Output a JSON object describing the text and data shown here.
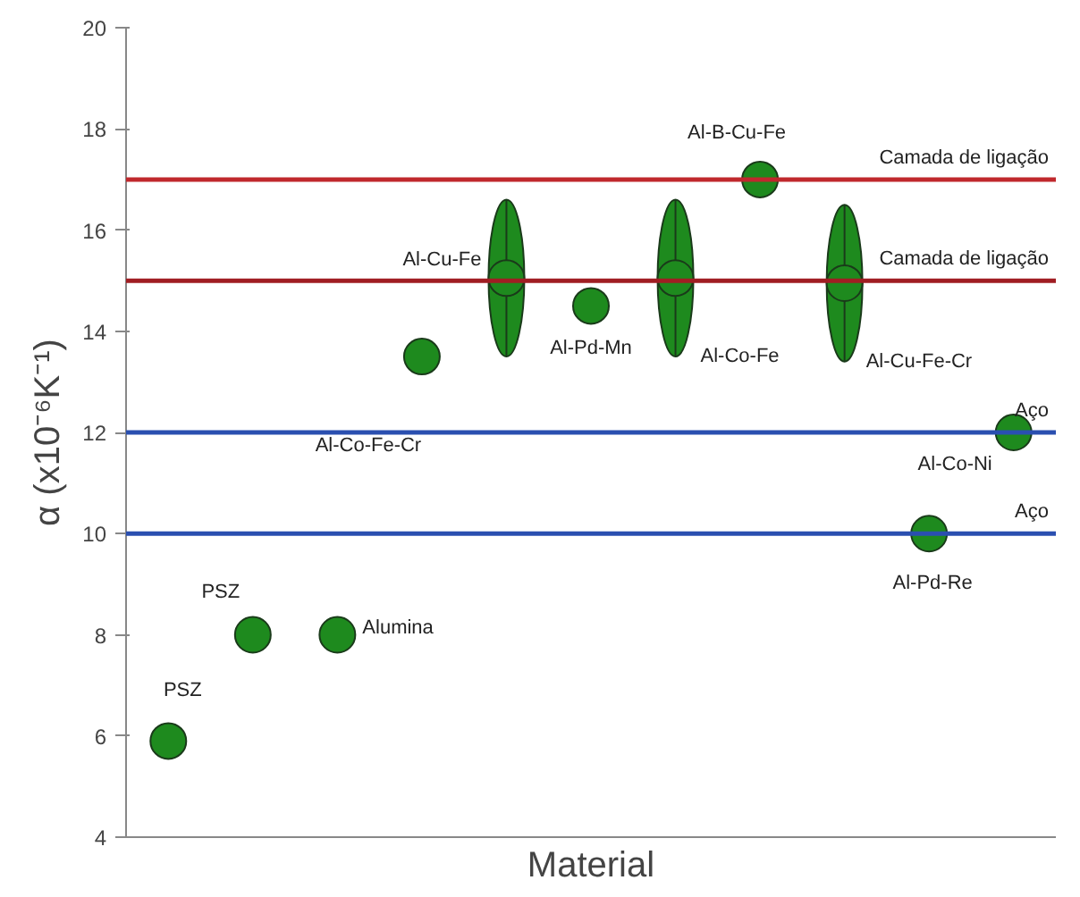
{
  "chart_data": {
    "type": "scatter",
    "xlabel": "Material",
    "ylabel": "α (x10⁻⁶K⁻¹)",
    "categories": [
      null,
      null,
      null,
      null,
      null,
      null,
      null,
      null,
      null,
      null,
      null
    ],
    "series": [
      {
        "color": "#1e8a1e",
        "values": [
          5.9,
          8.0,
          8.0,
          13.5,
          15.05,
          14.5,
          15.05,
          17.0,
          14.95,
          10.0,
          12.0
        ],
        "errors": [
          null,
          null,
          null,
          null,
          [
            13.5,
            16.6
          ],
          null,
          [
            13.5,
            16.6
          ],
          null,
          [
            13.4,
            16.5
          ],
          null,
          null
        ],
        "value_labels": [
          "PSZ",
          "PSZ",
          "Alumina",
          "Al-Co-Fe-Cr",
          "Al-Cu-Fe",
          "Al-Pd-Mn",
          "Al-Co-Fe",
          "Al-B-Cu-Fe",
          "Al-Cu-Fe-Cr",
          "Al-Pd-Re",
          "Al-Co-Ni"
        ]
      }
    ],
    "ylim": [
      4,
      20
    ],
    "yticks": [
      4,
      6,
      8,
      10,
      12,
      14,
      16,
      18,
      20
    ],
    "marker": "circle",
    "ref_lines": [
      {
        "axis": "y",
        "value": 17,
        "label": "Camada de ligação",
        "color": "#c0282d"
      },
      {
        "axis": "y",
        "value": 15,
        "label": "Camada de ligação",
        "color": "#a01e23"
      },
      {
        "axis": "y",
        "value": 12,
        "label": "Aço",
        "color": "#2a4fb0"
      },
      {
        "axis": "y",
        "value": 10,
        "label": "Aço",
        "color": "#2a4fb0"
      }
    ]
  }
}
